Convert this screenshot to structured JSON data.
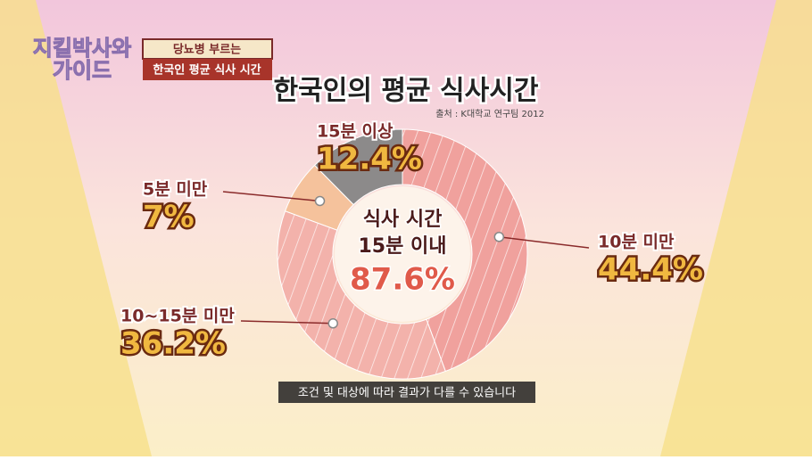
{
  "logo": [
    "지킬박사와",
    "가이드"
  ],
  "banner": {
    "top": "당뇨병 부르는",
    "bottom": "한국인 평균 식사 시간"
  },
  "caption": "조건 및 대상에 따라 결과가 다를 수 있습니다",
  "chart_data": {
    "type": "pie",
    "title": "한국인의 평균 식사시간",
    "source": "출처 : K대학교 연구팀 2012",
    "center_text": [
      "식사 시간",
      "15분 이내",
      "87.6%"
    ],
    "categories": [
      "10분 미만",
      "10~15분 미만",
      "5분 미만",
      "15분 이상"
    ],
    "values": [
      44.4,
      36.2,
      7,
      12.4
    ],
    "value_labels": [
      "44.4%",
      "36.2%",
      "7%",
      "12.4%"
    ],
    "colors": [
      "#f0a19d",
      "#f3b2ab",
      "#f5c29c",
      "#8c8a8a"
    ]
  }
}
